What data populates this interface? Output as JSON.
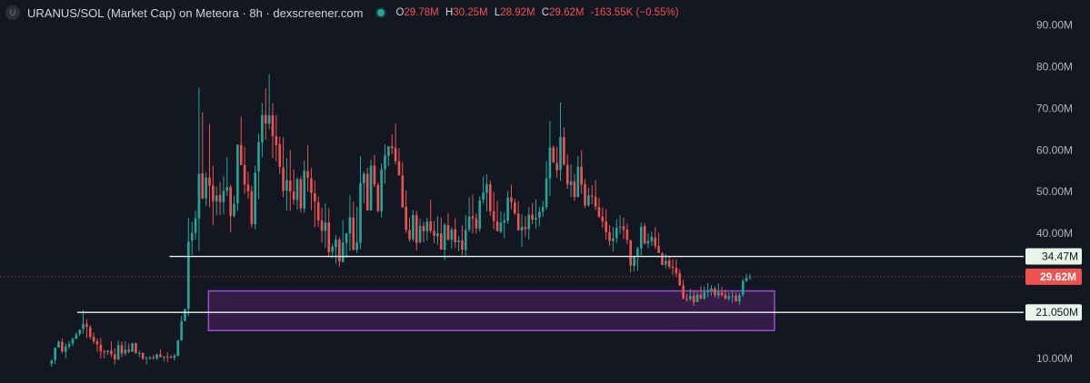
{
  "header": {
    "symbol_badge": "U",
    "title": "URANUS/SOL (Market Cap) on Meteora · 8h · dexscreener.com",
    "status_color": "#26a69a",
    "ohlc": {
      "o_label": "O",
      "o": "29.78M",
      "h_label": "H",
      "h": "30.25M",
      "l_label": "L",
      "l": "28.92M",
      "c_label": "C",
      "c": "29.62M",
      "change": "-163.55K (−0.55%)"
    }
  },
  "colors": {
    "background": "#131722",
    "up": "#26a69a",
    "down": "#ef5350",
    "axis_text": "#b2b5be",
    "level_line": "#e8f5e9",
    "zone_fill": "#3a1f4d",
    "zone_border": "#9c4dcc",
    "current_price_line": "#ef5350"
  },
  "chart_data": {
    "type": "candlestick",
    "y_axis_labels": [
      "90.00M",
      "80.00M",
      "70.00M",
      "60.00M",
      "50.00M",
      "40.00M",
      "10.00M"
    ],
    "y_axis_values": [
      90,
      80,
      70,
      60,
      50,
      40,
      10
    ],
    "ylim": [
      5,
      94
    ],
    "unit": "M",
    "x_range": [
      0,
      206
    ],
    "candles_compact": "0:8.7,9.8,8.0,9.5;1:9.6,12.6,8.6,12.6;2:12.6,14.3,12.6,14.0;3:14.0,14.8,11.2,11.7;4:11.6,13.6,10.1,12.9;5:12.9,14.2,12.3,13.5;6:13.6,15.0,13.0,14.7;7:14.7,16.3,14.7,15.8;8:15.9,16.9,15.4,16.9;9:17.1,21.6,16.0,18.3;10:18.3,19.4,14.9,17.6;11:17.5,18.0,14.6,15.2;12:15.2,16.2,13.5,14.1;13:14.1,14.8,11.6,13.4;14:13.3,14.9,10.0,11.7;15:11.7,12.1,10.0,11.6;16:11.6,12.0,10.9,11.9;17:11.9,14.1,10.3,11.0;18:11.0,12.4,8.6,9.8;19:9.7,14.3,9.7,13.2;20:13.2,14.1,10.3,11.2;21:11.2,14.2,10.6,12.1;22:12.1,13.6,11.2,11.6;23:11.6,13.8,11.6,13.6;24:13.7,13.8,11.2,11.2;25:11.2,11.9,10.3,11.3;26:11.3,11.5,9.6,10.0;27:10.1,10.5,8.6,10.1;28:10.1,10.6,9.7,10.2;29:10.3,10.9,9.7,10.1;30:10.0,11.1,9.6,11.0;31:11.0,12.2,10.4,10.3;32:10.3,10.6,9.3,10.5;33:10.5,11.5,9.1,10.3;34:10.4,10.8,10.0,10.2;35:10.2,11.1,9.5,10.7;36:10.6,14.5,10.6,14.3;37:14.3,20.2,14.3,18.9;38:19.0,21.9,18.9,21.9;39:21.9,43.7,20.2,38.0;40:38.3,42.7,34.8,40.1;41:40.1,45.4,38.5,43.6;42:43.6,74.9,35.8,54.3;43:54.4,69.1,48.9,48.3;44:48.4,54.6,46.6,53.4;45:53.4,66.2,46.3,51.4;46:51.5,56.2,41.9,47.7;47:47.7,51.3,44.3,49.1;48:49.2,52.3,44.4,47.5;49:47.5,53.7,44.6,50.2;50:50.2,58.3,48.9,51.1;51:51.1,51.6,40.3,44.2;52:44.2,49.1,43.8,47.1;53:47.2,60.2,45.4,61.3;54:61.2,68.0,56.4,56.4;55:56.4,60.8,49.5,51.7;56:51.7,54.8,48.3,50.1;57:50.1,51.4,41.4,42.2;58:42.2,56.2,41.0,54.6;59:54.8,63.9,48.2,61.9;60:61.8,71.3,58.2,68.4;61:68.4,74.8,62.4,66.4;62:66.3,78.2,65.0,68.3;63:68.3,71.2,58.1,63.3;64:63.3,68.4,57.3,61.2;65:61.4,63.2,54.3,55.9;66:55.8,63.0,48.7,50.2;67:50.2,58.1,45.5,52.8;68:52.7,60.0,45.4,50.1;69:50.0,55.3,46.9,48.1;70:48.0,53.4,45.7,53.0;71:53.0,53.7,45.1,46.0;72:45.9,57.5,44.9,55.0;73:54.9,61.1,50.0,53.3;74:53.2,55.7,45.6,49.7;75:49.6,52.7,41.5,47.7;76:47.5,48.8,41.5,43.1;77:43.1,46.1,37.8,40.6;78:40.6,47.2,36.6,42.6;79:42.6,46.0,34.3,35.5;80:35.6,37.5,34.1,36.8;81:36.7,39.6,32.7,38.5;82:38.5,39.1,32.0,33.3;83:33.1,43.2,33.1,37.8;84:37.7,40.1,34.2,40.0;85:40.0,49.1,35.8,43.9;86:43.8,47.6,36.1,36.0;87:36.1,46.4,35.3,37.8;88:37.8,58.5,36.2,52.0;89:52.0,54.8,47.3,54.3;90:54.3,55.7,47.1,45.5;91:45.5,57.8,45.5,56.2;92:56.3,58.8,51.1,51.7;93:51.6,52.2,45.0,45.4;94:45.3,56.8,43.8,55.4;95:55.4,61.3,51.9,58.7;96:58.6,60.7,56.1,60.9;97:60.9,63.7,59.0,60.4;98:60.5,66.3,56.6,57.3;99:57.3,60.4,53.9,53.9;100:53.9,57.1,46.3,46.2;101:46.4,50.3,40.1,40.8;102:40.8,43.8,38.0,38.6;103:38.6,45.7,38.1,44.4;104:44.4,45.4,35.9,37.7;105:37.9,43.5,37.6,41.8;106:41.8,42.8,37.8,40.5;107:40.5,43.7,38.3,42.8;108:42.9,48.0,40.0,40.6;109:40.6,43.0,37.7,39.4;110:39.3,44.1,37.2,40.0;111:40.0,43.8,36.8,36.1;112:36.1,42.5,33.6,42.1;113:42.0,44.9,39.1,38.4;114:38.5,41.5,36.3,40.9;115:41.0,43.6,36.5,37.9;116:37.9,39.4,35.7,38.3;117:38.3,41.9,34.8,36.1;118:36.0,44.4,34.5,40.8;119:40.9,48.7,40.3,44.0;120:44.1,49.3,40.0,43.6;121:43.6,44.8,40.0,41.2;122:41.1,48.9,40.4,47.9;123:48.1,53.7,47.1,49.8;124:49.7,54.2,45.3,51.8;125:51.8,52.7,44.2,45.3;126:45.3,49.9,41.0,43.0;127:42.9,47.8,40.4,40.6;128:40.4,45.3,40.0,42.6;129:42.6,45.0,38.9,43.1;130:43.1,50.2,42.3,48.6;131:48.6,51.7,45.8,47.5;132:47.4,48.3,44.4,44.8;133:44.8,47.7,40.6,40.8;134:40.7,44.6,36.7,41.6;135:41.5,44.1,39.2,41.0;136:41.0,46.3,38.5,44.5;137:44.5,47.3,42.2,43.3;138:43.3,48.2,41.2,43.8;139:43.8,46.4,41.7,45.2;140:45.2,47.8,44.0,46.3;141:46.3,57.3,45.7,53.2;142:53.2,67.0,48.9,60.6;143:60.6,61.1,56.9,57.0;144:56.9,60.8,53.4,55.1;145:55.2,71.4,52.6,63.1;146:63.1,65.4,56.3,56.5;147:56.4,58.9,50.7,51.7;148:51.6,56.5,48.7,52.5;149:52.5,54.3,47.8,48.7;150:48.7,58.5,48.7,56.0;151:56.0,60.0,49.5,51.7;152:51.8,53.0,46.1,46.7;153:46.7,51.0,46.4,49.1;154:49.1,51.6,47.0,48.8;155:48.8,52.8,45.6,46.4;156:46.3,48.5,43.7,44.0;157:44.0,46.2,41.3,42.9;158:42.9,45.8,38.5,40.3;159:40.3,42.0,37.0,38.2;160:38.2,41.5,35.7,38.8;161:38.9,43.4,37.7,41.3;162:41.4,44.4,39.9,41.6;163:41.7,43.8,38.6,40.9;164:40.9,42.3,37.4,38.4;165:38.4,38.3,30.6,32.3;166:32.2,34.5,30.9,34.3;167:34.4,36.8,31.0,36.4;168:36.4,42.6,34.7,41.6;169:41.8,42.5,37.3,37.6;170:37.6,40.0,36.5,38.2;171:38.1,40.4,37.0,39.2;172:39.0,41.5,36.3,37.0;173:37.0,40.2,35.6,35.3;174:35.2,35.5,32.4,32.4;175:32.5,35.1,31.6,33.4;176:33.5,34.4,31.4,32.0;177:32.0,33.8,30.1,31.7;178:31.7,33.8,29.6,30.4;179:30.5,31.4,27.4,27.5;180:27.5,28.9,24.2,24.4;181:24.4,25.5,23.6,24.1;182:24.2,26.7,23.8,25.0;183:25.1,26.4,22.6,23.5;184:23.5,26.0,23.5,25.3;185:25.3,27.3,24.3,24.3;186:24.4,27.3,24.1,25.9;187:25.9,28.1,24.7,26.1;188:26.1,27.6,25.1,26.8;189:26.8,27.3,24.6,25.2;190:25.1,28.0,24.3,25.9;191:25.8,27.2,24.9,25.2;192:25.3,26.5,24.1,24.4;193:24.3,25.8,23.8,24.9;194:24.9,26.0,23.3,25.0;195:25.0,25.8,23.6,23.7;196:23.7,25.7,22.9,25.2;197:25.3,29.2,24.8,28.6;198:28.6,30.3,28.3,29.3;199:29.6,30.3,28.9,29.6",
    "last_candle": {
      "o": 29.78,
      "h": 30.25,
      "l": 28.92,
      "c": 29.62
    },
    "levels": [
      {
        "label": "34.47M",
        "value": 34.47,
        "x_start": 33.6
      },
      {
        "label": "21.050M",
        "value": 21.05,
        "x_start": 7.3
      }
    ],
    "current_price": {
      "label": "29.62M",
      "value": 29.62
    },
    "zones": [
      {
        "y_top": 26.2,
        "y_bottom": 16.7,
        "x_start": 44.7,
        "x_end": 206
      }
    ]
  }
}
